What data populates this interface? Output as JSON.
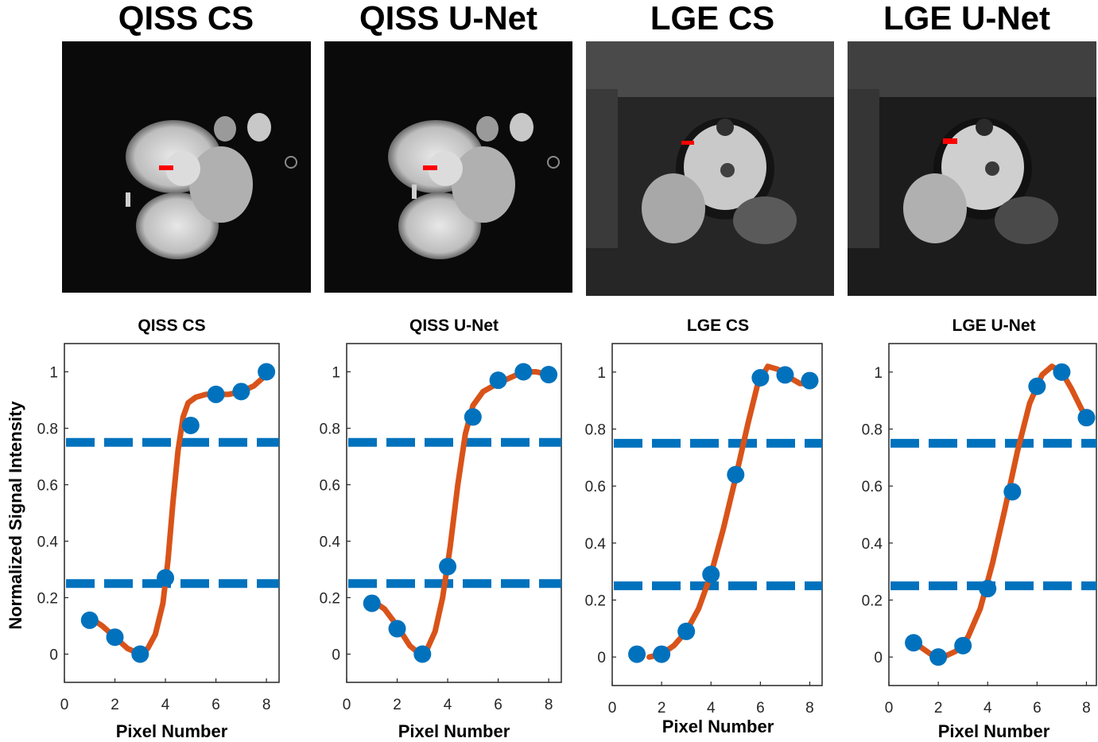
{
  "panels": [
    {
      "title": "QISS CS"
    },
    {
      "title": "QISS U-Net"
    },
    {
      "title": "LGE CS"
    },
    {
      "title": "LGE U-Net"
    }
  ],
  "colors": {
    "points": "#0072BD",
    "fit": "#D95319",
    "threshold": "#0072BD",
    "marker": "#ff0000"
  },
  "ylabel": "Normalized Signal Intensity",
  "chart_data": [
    {
      "type": "scatter",
      "title": "QISS CS",
      "xlabel": "Pixel Number",
      "ylabel": "Normalized Signal Intensity",
      "xlim": [
        0,
        8.5
      ],
      "ylim": [
        -0.1,
        1.1
      ],
      "xticks": [
        0,
        2,
        4,
        6,
        8
      ],
      "yticks": [
        0,
        0.2,
        0.4,
        0.6,
        0.8,
        1
      ],
      "x": [
        1,
        2,
        3,
        4,
        5,
        6,
        7,
        8
      ],
      "y": [
        0.12,
        0.06,
        0.0,
        0.27,
        0.81,
        0.92,
        0.93,
        1.0
      ],
      "fit": [
        [
          1,
          0.13
        ],
        [
          1.5,
          0.1
        ],
        [
          2,
          0.06
        ],
        [
          2.5,
          0.02
        ],
        [
          3,
          0.0
        ],
        [
          3.3,
          0.02
        ],
        [
          3.6,
          0.07
        ],
        [
          3.9,
          0.18
        ],
        [
          4.1,
          0.33
        ],
        [
          4.3,
          0.54
        ],
        [
          4.5,
          0.72
        ],
        [
          4.7,
          0.84
        ],
        [
          4.9,
          0.89
        ],
        [
          5.2,
          0.91
        ],
        [
          5.6,
          0.92
        ],
        [
          6,
          0.92
        ],
        [
          6.5,
          0.92
        ],
        [
          7,
          0.93
        ],
        [
          7.5,
          0.95
        ],
        [
          8,
          0.99
        ]
      ],
      "thresholds": [
        0.25,
        0.75
      ]
    },
    {
      "type": "scatter",
      "title": "QISS U-Net",
      "xlabel": "Pixel Number",
      "ylabel": "",
      "xlim": [
        0,
        8.5
      ],
      "ylim": [
        -0.1,
        1.1
      ],
      "xticks": [
        0,
        2,
        4,
        6,
        8
      ],
      "yticks": [
        0,
        0.2,
        0.4,
        0.6,
        0.8,
        1
      ],
      "x": [
        1,
        2,
        3,
        4,
        5,
        6,
        7,
        8
      ],
      "y": [
        0.18,
        0.09,
        0.0,
        0.31,
        0.84,
        0.97,
        1.0,
        0.99
      ],
      "fit": [
        [
          1,
          0.19
        ],
        [
          1.5,
          0.16
        ],
        [
          2,
          0.1
        ],
        [
          2.5,
          0.03
        ],
        [
          2.9,
          0.0
        ],
        [
          3.2,
          0.02
        ],
        [
          3.5,
          0.08
        ],
        [
          3.8,
          0.2
        ],
        [
          4.1,
          0.38
        ],
        [
          4.4,
          0.6
        ],
        [
          4.7,
          0.78
        ],
        [
          5,
          0.88
        ],
        [
          5.4,
          0.93
        ],
        [
          6,
          0.96
        ],
        [
          6.5,
          0.98
        ],
        [
          7,
          1.0
        ],
        [
          7.5,
          1.0
        ],
        [
          8,
          0.99
        ]
      ],
      "thresholds": [
        0.25,
        0.75
      ]
    },
    {
      "type": "scatter",
      "title": "LGE CS",
      "xlabel": "Pixel Number",
      "ylabel": "",
      "xlim": [
        0,
        8.5
      ],
      "ylim": [
        -0.1,
        1.1
      ],
      "xticks": [
        0,
        2,
        4,
        6,
        8
      ],
      "yticks": [
        0,
        0.2,
        0.4,
        0.6,
        0.8,
        1
      ],
      "x": [
        1,
        2,
        3,
        4,
        5,
        6,
        7,
        8
      ],
      "y": [
        0.01,
        0.01,
        0.09,
        0.29,
        0.64,
        0.98,
        0.99,
        0.97
      ],
      "fit": [
        [
          1.5,
          0.0
        ],
        [
          2,
          0.01
        ],
        [
          2.5,
          0.04
        ],
        [
          3,
          0.09
        ],
        [
          3.5,
          0.17
        ],
        [
          4,
          0.29
        ],
        [
          4.5,
          0.45
        ],
        [
          5,
          0.63
        ],
        [
          5.5,
          0.82
        ],
        [
          5.9,
          0.96
        ],
        [
          6.3,
          1.02
        ],
        [
          6.7,
          1.01
        ],
        [
          7.2,
          0.98
        ],
        [
          7.6,
          0.96
        ],
        [
          8,
          0.96
        ]
      ],
      "thresholds": [
        0.25,
        0.75
      ]
    },
    {
      "type": "scatter",
      "title": "LGE U-Net",
      "xlabel": "Pixel Number",
      "ylabel": "",
      "xlim": [
        0,
        8.5
      ],
      "ylim": [
        -0.1,
        1.1
      ],
      "xticks": [
        0,
        2,
        4,
        6,
        8
      ],
      "yticks": [
        0,
        0.2,
        0.4,
        0.6,
        0.8,
        1
      ],
      "x": [
        1,
        2,
        3,
        4,
        5,
        6,
        7,
        8
      ],
      "y": [
        0.05,
        0.0,
        0.04,
        0.24,
        0.58,
        0.95,
        1.0,
        0.84
      ],
      "fit": [
        [
          1.2,
          0.04
        ],
        [
          1.7,
          0.01
        ],
        [
          2.2,
          0.0
        ],
        [
          2.7,
          0.02
        ],
        [
          3.2,
          0.07
        ],
        [
          3.7,
          0.17
        ],
        [
          4.2,
          0.33
        ],
        [
          4.7,
          0.52
        ],
        [
          5.2,
          0.72
        ],
        [
          5.7,
          0.89
        ],
        [
          6.2,
          0.99
        ],
        [
          6.6,
          1.02
        ],
        [
          7,
          1.0
        ],
        [
          7.4,
          0.94
        ],
        [
          7.8,
          0.87
        ],
        [
          8,
          0.84
        ]
      ],
      "thresholds": [
        0.25,
        0.75
      ]
    }
  ]
}
